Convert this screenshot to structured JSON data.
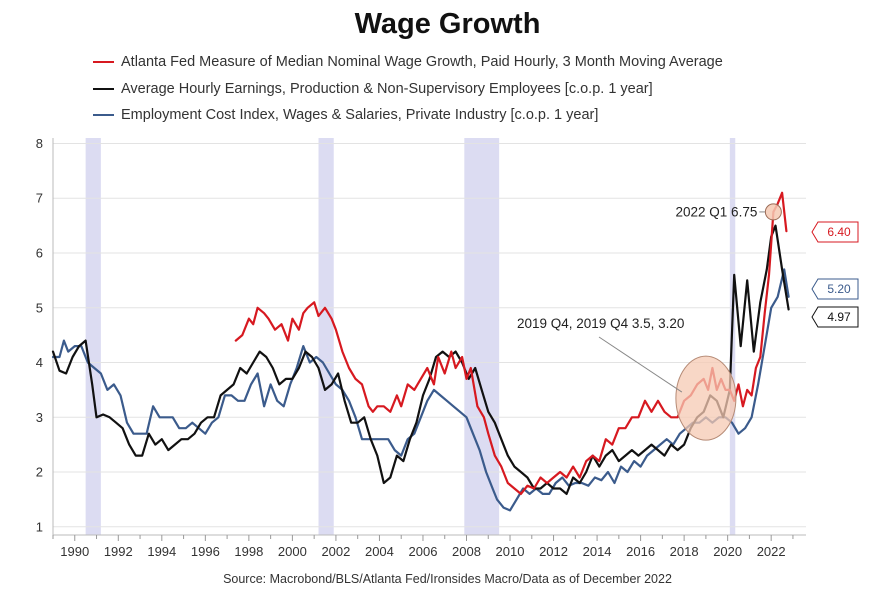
{
  "chart_data": {
    "type": "line",
    "title": "Wage Growth",
    "source": "Source: Macrobond/BLS/Atlanta Fed/Ironsides Macro/Data as of December 2022",
    "xlabel": "",
    "ylabel": "",
    "xlim": [
      1989,
      2023.6
    ],
    "ylim": [
      0.85,
      8.1
    ],
    "yticks": [
      1,
      2,
      3,
      4,
      5,
      6,
      7,
      8
    ],
    "xticks": [
      1990,
      1992,
      1994,
      1996,
      1998,
      2000,
      2002,
      2004,
      2006,
      2008,
      2010,
      2012,
      2014,
      2016,
      2018,
      2020,
      2022
    ],
    "grid": "horizontal",
    "recessions": [
      [
        1990.5,
        1991.2
      ],
      [
        2001.2,
        2001.9
      ],
      [
        2007.9,
        2009.5
      ],
      [
        2020.1,
        2020.35
      ]
    ],
    "series": [
      {
        "name": "Atlanta Fed Measure of Median Nominal Wage Growth, Paid Hourly, 3 Month Moving Average",
        "color": "#d71920",
        "x": [
          1997.4,
          1997.7,
          1998.0,
          1998.2,
          1998.4,
          1998.7,
          1998.9,
          1999.2,
          1999.5,
          1999.8,
          2000.0,
          2000.3,
          2000.5,
          2000.7,
          2001.0,
          2001.2,
          2001.5,
          2001.8,
          2002.0,
          2002.3,
          2002.6,
          2002.9,
          2003.2,
          2003.5,
          2003.7,
          2003.9,
          2004.2,
          2004.5,
          2004.8,
          2005.0,
          2005.3,
          2005.6,
          2005.9,
          2006.2,
          2006.5,
          2006.7,
          2007.0,
          2007.3,
          2007.5,
          2007.8,
          2008.0,
          2008.2,
          2008.5,
          2008.8,
          2009.0,
          2009.3,
          2009.6,
          2009.9,
          2010.2,
          2010.5,
          2010.8,
          2011.1,
          2011.4,
          2011.7,
          2012.0,
          2012.3,
          2012.6,
          2012.9,
          2013.2,
          2013.5,
          2013.8,
          2014.1,
          2014.4,
          2014.7,
          2015.0,
          2015.3,
          2015.6,
          2015.9,
          2016.2,
          2016.5,
          2016.8,
          2017.1,
          2017.4,
          2017.7,
          2018.0,
          2018.3,
          2018.6,
          2018.9,
          2019.1,
          2019.3,
          2019.5,
          2019.7,
          2019.9,
          2020.1,
          2020.3,
          2020.5,
          2020.7,
          2020.9,
          2021.1,
          2021.3,
          2021.5,
          2021.7,
          2021.9,
          2022.1,
          2022.3,
          2022.5,
          2022.7
        ],
        "values": [
          4.4,
          4.5,
          4.8,
          4.7,
          5.0,
          4.9,
          4.8,
          4.6,
          4.7,
          4.4,
          4.8,
          4.6,
          4.9,
          5.0,
          5.1,
          4.85,
          5.0,
          4.8,
          4.6,
          4.2,
          3.9,
          3.7,
          3.6,
          3.2,
          3.1,
          3.2,
          3.2,
          3.1,
          3.4,
          3.2,
          3.6,
          3.5,
          3.7,
          3.9,
          3.6,
          4.1,
          3.8,
          4.2,
          3.9,
          4.1,
          3.7,
          3.9,
          3.2,
          3.0,
          2.7,
          2.3,
          2.1,
          1.8,
          1.7,
          1.6,
          1.75,
          1.7,
          1.9,
          1.8,
          1.9,
          2.0,
          1.9,
          2.1,
          1.9,
          2.2,
          2.3,
          2.2,
          2.6,
          2.5,
          2.8,
          2.8,
          3.0,
          3.0,
          3.3,
          3.1,
          3.3,
          3.1,
          3.0,
          3.0,
          3.3,
          3.4,
          3.6,
          3.7,
          3.5,
          3.9,
          3.5,
          3.7,
          3.5,
          3.5,
          3.3,
          3.6,
          3.2,
          3.5,
          3.4,
          3.9,
          4.1,
          4.9,
          5.6,
          6.75,
          6.9,
          7.1,
          6.4
        ]
      },
      {
        "name": "Average Hourly Earnings, Production & Non-Supervisory Employees [c.o.p. 1 year]",
        "color": "#111111",
        "x": [
          1989.0,
          1989.3,
          1989.6,
          1989.9,
          1990.2,
          1990.5,
          1990.8,
          1991.0,
          1991.3,
          1991.6,
          1991.9,
          1992.2,
          1992.5,
          1992.8,
          1993.1,
          1993.4,
          1993.7,
          1994.0,
          1994.3,
          1994.6,
          1994.9,
          1995.2,
          1995.5,
          1995.8,
          1996.1,
          1996.4,
          1996.7,
          1997.0,
          1997.3,
          1997.6,
          1997.9,
          1998.2,
          1998.5,
          1998.8,
          1999.1,
          1999.4,
          1999.7,
          2000.0,
          2000.3,
          2000.6,
          2000.9,
          2001.2,
          2001.5,
          2001.8,
          2002.1,
          2002.4,
          2002.7,
          2003.0,
          2003.3,
          2003.6,
          2003.9,
          2004.2,
          2004.5,
          2004.8,
          2005.1,
          2005.4,
          2005.7,
          2006.0,
          2006.3,
          2006.6,
          2006.9,
          2007.2,
          2007.5,
          2007.8,
          2008.1,
          2008.4,
          2008.7,
          2009.0,
          2009.3,
          2009.6,
          2009.9,
          2010.2,
          2010.5,
          2010.8,
          2011.1,
          2011.4,
          2011.7,
          2012.0,
          2012.3,
          2012.6,
          2012.9,
          2013.2,
          2013.5,
          2013.8,
          2014.1,
          2014.4,
          2014.7,
          2015.0,
          2015.3,
          2015.6,
          2015.9,
          2016.2,
          2016.5,
          2016.8,
          2017.1,
          2017.4,
          2017.7,
          2018.0,
          2018.3,
          2018.6,
          2018.9,
          2019.2,
          2019.5,
          2019.8,
          2020.1,
          2020.3,
          2020.6,
          2020.9,
          2021.2,
          2021.5,
          2021.8,
          2022.0,
          2022.2,
          2022.5,
          2022.8
        ],
        "values": [
          4.2,
          3.85,
          3.8,
          4.1,
          4.3,
          4.4,
          3.6,
          3.0,
          3.05,
          3.0,
          2.9,
          2.8,
          2.5,
          2.3,
          2.3,
          2.7,
          2.5,
          2.6,
          2.4,
          2.5,
          2.6,
          2.6,
          2.7,
          2.9,
          3.0,
          3.0,
          3.4,
          3.5,
          3.6,
          3.9,
          3.8,
          4.0,
          4.2,
          4.1,
          3.9,
          3.6,
          3.7,
          3.7,
          3.9,
          4.2,
          4.1,
          3.9,
          3.5,
          3.6,
          3.8,
          3.3,
          2.9,
          2.9,
          3.0,
          2.6,
          2.3,
          1.8,
          1.9,
          2.3,
          2.2,
          2.6,
          2.9,
          3.4,
          3.7,
          4.1,
          4.2,
          4.1,
          4.2,
          4.0,
          3.7,
          3.9,
          3.5,
          3.1,
          2.9,
          2.6,
          2.3,
          2.1,
          2.0,
          1.9,
          1.7,
          1.7,
          1.8,
          1.7,
          1.7,
          1.6,
          1.9,
          1.8,
          2.0,
          2.3,
          2.1,
          2.3,
          2.4,
          2.2,
          2.3,
          2.4,
          2.3,
          2.4,
          2.5,
          2.4,
          2.3,
          2.5,
          2.4,
          2.5,
          2.8,
          3.0,
          3.1,
          3.4,
          3.3,
          3.0,
          3.5,
          5.6,
          4.3,
          5.5,
          4.2,
          5.1,
          5.7,
          6.3,
          6.5,
          5.7,
          4.97
        ]
      },
      {
        "name": "Employment Cost Index, Wages & Salaries, Private Industry [c.o.p. 1 year]",
        "color": "#3b5b8c",
        "x": [
          1989.0,
          1989.3,
          1989.5,
          1989.7,
          1990.0,
          1990.3,
          1990.6,
          1990.9,
          1991.2,
          1991.5,
          1991.8,
          1992.1,
          1992.4,
          1992.7,
          1993.0,
          1993.3,
          1993.6,
          1993.9,
          1994.2,
          1994.5,
          1994.8,
          1995.1,
          1995.4,
          1995.7,
          1996.0,
          1996.3,
          1996.6,
          1996.9,
          1997.2,
          1997.5,
          1997.8,
          1998.1,
          1998.4,
          1998.7,
          1999.0,
          1999.3,
          1999.6,
          1999.9,
          2000.2,
          2000.5,
          2000.8,
          2001.1,
          2001.4,
          2001.7,
          2002.0,
          2002.3,
          2002.6,
          2002.9,
          2003.2,
          2003.5,
          2003.8,
          2004.1,
          2004.4,
          2004.7,
          2005.0,
          2005.3,
          2005.6,
          2005.9,
          2006.2,
          2006.5,
          2006.8,
          2007.1,
          2007.4,
          2007.7,
          2008.0,
          2008.3,
          2008.6,
          2008.9,
          2009.2,
          2009.4,
          2009.7,
          2010.0,
          2010.3,
          2010.6,
          2010.9,
          2011.2,
          2011.5,
          2011.8,
          2012.1,
          2012.4,
          2012.7,
          2013.0,
          2013.3,
          2013.6,
          2013.9,
          2014.2,
          2014.5,
          2014.8,
          2015.1,
          2015.4,
          2015.7,
          2016.0,
          2016.3,
          2016.6,
          2016.9,
          2017.2,
          2017.5,
          2017.8,
          2018.1,
          2018.4,
          2018.7,
          2019.0,
          2019.3,
          2019.6,
          2019.9,
          2020.2,
          2020.5,
          2020.8,
          2021.1,
          2021.4,
          2021.7,
          2022.0,
          2022.3,
          2022.6,
          2022.8
        ],
        "values": [
          4.1,
          4.1,
          4.4,
          4.2,
          4.3,
          4.3,
          4.0,
          3.9,
          3.8,
          3.5,
          3.6,
          3.4,
          2.9,
          2.7,
          2.7,
          2.7,
          3.2,
          3.0,
          3.0,
          3.0,
          2.8,
          2.8,
          2.9,
          2.8,
          2.7,
          2.9,
          3.0,
          3.4,
          3.4,
          3.3,
          3.3,
          3.6,
          3.8,
          3.2,
          3.6,
          3.3,
          3.2,
          3.6,
          3.9,
          4.3,
          4.0,
          4.1,
          4.0,
          3.8,
          3.6,
          3.5,
          3.3,
          3.0,
          2.6,
          2.6,
          2.6,
          2.6,
          2.6,
          2.4,
          2.3,
          2.6,
          2.7,
          3.0,
          3.3,
          3.5,
          3.4,
          3.3,
          3.2,
          3.1,
          3.0,
          2.7,
          2.4,
          2.0,
          1.7,
          1.5,
          1.35,
          1.3,
          1.5,
          1.7,
          1.6,
          1.7,
          1.6,
          1.6,
          1.8,
          1.9,
          1.75,
          1.8,
          1.8,
          1.75,
          1.9,
          1.85,
          2.0,
          1.8,
          2.1,
          2.0,
          2.2,
          2.1,
          2.3,
          2.4,
          2.5,
          2.6,
          2.5,
          2.7,
          2.8,
          2.9,
          2.9,
          3.0,
          2.9,
          3.0,
          3.0,
          2.9,
          2.7,
          2.8,
          3.0,
          3.6,
          4.3,
          5.0,
          5.2,
          5.7,
          5.2
        ]
      }
    ],
    "callouts": [
      {
        "label": "2022 Q1 6.75",
        "x": 2022.1,
        "y": 6.75
      },
      {
        "label": "2019 Q4, 2019 Q4 3.5, 3.20",
        "x": 2019.0,
        "y": 3.35
      }
    ],
    "end_labels": [
      {
        "text": "6.40",
        "color": "#d71920",
        "y": 6.4
      },
      {
        "text": "5.20",
        "color": "#3b5b8c",
        "y": 5.2
      },
      {
        "text": "4.97",
        "color": "#111111",
        "y": 4.97
      }
    ]
  }
}
